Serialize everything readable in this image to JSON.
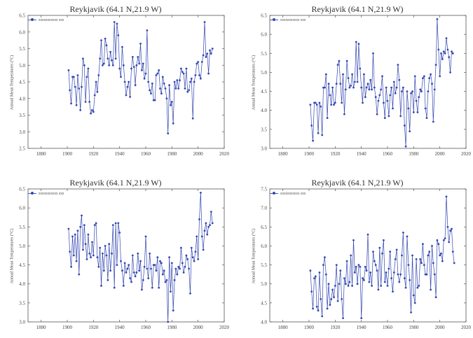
{
  "figure": {
    "background": "#ffffff",
    "series_color": "#3347b0",
    "axis_color": "#555555"
  },
  "chart_data": [
    {
      "type": "line",
      "title": "Reykjavik (64.1 N,21.9 W)",
      "legend": "xxxxxxxxxxx xxx",
      "ylabel": "Annual Mean Temperatures (°C)",
      "xlabel": "",
      "xlim": [
        1870,
        2020
      ],
      "ylim": [
        2.5,
        6.5
      ],
      "xticks": [
        "1880",
        "1900",
        "1920",
        "1940",
        "1960",
        "1980",
        "2000",
        "2020"
      ],
      "yticks": [
        "2.5",
        "3.0",
        "3.5",
        "4.0",
        "4.5",
        "5.0",
        "5.5",
        "6.0",
        "6.5"
      ],
      "x": [
        1901,
        1902,
        1903,
        1904,
        1905,
        1906,
        1907,
        1908,
        1909,
        1910,
        1911,
        1912,
        1913,
        1914,
        1915,
        1916,
        1917,
        1918,
        1919,
        1920,
        1921,
        1922,
        1923,
        1924,
        1925,
        1926,
        1927,
        1928,
        1929,
        1930,
        1931,
        1932,
        1933,
        1934,
        1935,
        1936,
        1937,
        1938,
        1939,
        1940,
        1941,
        1942,
        1943,
        1944,
        1945,
        1946,
        1947,
        1948,
        1949,
        1950,
        1951,
        1952,
        1953,
        1954,
        1955,
        1956,
        1957,
        1958,
        1959,
        1960,
        1961,
        1962,
        1963,
        1964,
        1965,
        1966,
        1967,
        1968,
        1969,
        1970,
        1971,
        1972,
        1973,
        1974,
        1975,
        1976,
        1977,
        1978,
        1979,
        1980,
        1981,
        1982,
        1983,
        1984,
        1985,
        1986,
        1987,
        1988,
        1989,
        1990,
        1991,
        1992,
        1993,
        1994,
        1995,
        1996,
        1997,
        1998,
        1999,
        2000,
        2001,
        2002,
        2003,
        2004,
        2005,
        2006,
        2007,
        2008,
        2009,
        2010,
        2011
      ],
      "values": [
        4.85,
        4.25,
        3.85,
        4.65,
        4.65,
        4.35,
        3.8,
        4.7,
        4.3,
        3.65,
        4.35,
        5.2,
        5.0,
        3.9,
        4.65,
        4.9,
        3.9,
        3.55,
        3.65,
        3.6,
        4.1,
        4.5,
        4.2,
        4.7,
        5.2,
        5.75,
        5.0,
        5.05,
        5.8,
        5.6,
        5.2,
        5.0,
        5.4,
        5.15,
        5.0,
        6.3,
        5.2,
        6.25,
        5.9,
        4.9,
        4.65,
        5.55,
        5.0,
        4.5,
        4.1,
        4.35,
        4.5,
        4.05,
        4.9,
        5.25,
        4.95,
        4.4,
        5.0,
        5.25,
        5.05,
        5.65,
        4.85,
        5.05,
        4.6,
        4.75,
        6.05,
        4.5,
        4.25,
        4.15,
        4.45,
        3.95,
        3.95,
        4.7,
        4.75,
        4.85,
        4.3,
        4.15,
        4.65,
        4.45,
        4.3,
        4.0,
        2.95,
        4.4,
        3.8,
        3.9,
        3.25,
        4.5,
        4.3,
        4.55,
        4.3,
        4.55,
        4.9,
        4.8,
        4.75,
        4.3,
        4.9,
        4.2,
        4.25,
        4.5,
        4.6,
        3.4,
        4.5,
        4.7,
        5.05,
        5.1,
        4.7,
        4.6,
        5.1,
        5.3,
        6.3,
        5.25,
        5.35,
        4.75,
        5.45,
        5.35,
        5.5
      ]
    },
    {
      "type": "line",
      "title": "Reykjavik (64.1 N,21.9 W)",
      "legend": "xxxxxxxxxxx xxx",
      "ylabel": "Annual Mean Temperatures (°C)",
      "xlabel": "",
      "xlim": [
        1870,
        2020
      ],
      "ylim": [
        3.0,
        6.5
      ],
      "xticks": [
        "1880",
        "1900",
        "1920",
        "1940",
        "1960",
        "1980",
        "2000",
        "2020"
      ],
      "yticks": [
        "3.0",
        "3.5",
        "4.0",
        "4.5",
        "5.0",
        "5.5",
        "6.0",
        "6.5"
      ],
      "x": [
        1901,
        1902,
        1903,
        1904,
        1905,
        1906,
        1907,
        1908,
        1909,
        1910,
        1911,
        1912,
        1913,
        1914,
        1915,
        1916,
        1917,
        1918,
        1919,
        1920,
        1921,
        1922,
        1923,
        1924,
        1925,
        1926,
        1927,
        1928,
        1929,
        1930,
        1931,
        1932,
        1933,
        1934,
        1935,
        1936,
        1937,
        1938,
        1939,
        1940,
        1941,
        1942,
        1943,
        1944,
        1945,
        1946,
        1947,
        1948,
        1949,
        1950,
        1951,
        1952,
        1953,
        1954,
        1955,
        1956,
        1957,
        1958,
        1959,
        1960,
        1961,
        1962,
        1963,
        1964,
        1965,
        1966,
        1967,
        1968,
        1969,
        1970,
        1971,
        1972,
        1973,
        1974,
        1975,
        1976,
        1977,
        1978,
        1979,
        1980,
        1981,
        1982,
        1983,
        1984,
        1985,
        1986,
        1987,
        1988,
        1989,
        1990,
        1991,
        1992,
        1993,
        1994,
        1995,
        1996,
        1997,
        1998,
        1999,
        2000,
        2001,
        2002,
        2003,
        2004,
        2005,
        2006,
        2007,
        2008,
        2009,
        2010
      ],
      "values": [
        4.15,
        3.6,
        3.2,
        4.2,
        4.2,
        4.15,
        3.4,
        4.2,
        4.1,
        3.35,
        4.6,
        4.6,
        4.95,
        3.8,
        4.7,
        4.4,
        4.15,
        4.6,
        4.15,
        4.2,
        4.7,
        5.2,
        5.3,
        4.7,
        4.2,
        4.95,
        3.9,
        4.55,
        5.3,
        4.85,
        4.6,
        4.65,
        4.95,
        4.6,
        4.75,
        5.8,
        4.75,
        5.75,
        5.1,
        4.6,
        4.2,
        4.95,
        4.35,
        4.6,
        4.7,
        4.55,
        4.8,
        4.55,
        5.5,
        4.6,
        4.35,
        3.9,
        4.25,
        4.4,
        4.55,
        4.9,
        4.2,
        3.8,
        4.6,
        4.25,
        3.85,
        4.4,
        4.6,
        4.05,
        4.75,
        4.45,
        4.6,
        5.2,
        4.8,
        3.85,
        4.5,
        4.6,
        3.6,
        3.05,
        4.5,
        4.05,
        3.45,
        4.45,
        4.5,
        3.95,
        4.9,
        4.25,
        3.95,
        4.35,
        4.55,
        4.5,
        4.85,
        4.9,
        4.05,
        3.8,
        4.5,
        4.85,
        4.95,
        4.7,
        3.7,
        4.55,
        5.2,
        6.4,
        5.6,
        4.9,
        5.5,
        5.35,
        5.55,
        5.5,
        5.9,
        5.6,
        5.4,
        5.0,
        5.55,
        5.5
      ]
    },
    {
      "type": "line",
      "title": "Reykjavik (64.1 N,21.9 W)",
      "legend": "xxxxxxxxxxx xxx",
      "ylabel": "Annual Mean Temperatures (°C)",
      "xlabel": "",
      "xlim": [
        1870,
        2020
      ],
      "ylim": [
        3.0,
        6.5
      ],
      "xticks": [
        "1880",
        "1900",
        "1920",
        "1940",
        "1960",
        "1980",
        "2000",
        "2020"
      ],
      "yticks": [
        "3.0",
        "3.5",
        "4.0",
        "4.5",
        "5.0",
        "5.5",
        "6.0",
        "6.5"
      ],
      "x": [
        1901,
        1902,
        1903,
        1904,
        1905,
        1906,
        1907,
        1908,
        1909,
        1910,
        1911,
        1912,
        1913,
        1914,
        1915,
        1916,
        1917,
        1918,
        1919,
        1920,
        1921,
        1922,
        1923,
        1924,
        1925,
        1926,
        1927,
        1928,
        1929,
        1930,
        1931,
        1932,
        1933,
        1934,
        1935,
        1936,
        1937,
        1938,
        1939,
        1940,
        1941,
        1942,
        1943,
        1944,
        1945,
        1946,
        1947,
        1948,
        1949,
        1950,
        1951,
        1952,
        1953,
        1954,
        1955,
        1956,
        1957,
        1958,
        1959,
        1960,
        1961,
        1962,
        1963,
        1964,
        1965,
        1966,
        1967,
        1968,
        1969,
        1970,
        1971,
        1972,
        1973,
        1974,
        1975,
        1976,
        1977,
        1978,
        1979,
        1980,
        1981,
        1982,
        1983,
        1984,
        1985,
        1986,
        1987,
        1988,
        1989,
        1990,
        1991,
        1992,
        1993,
        1994,
        1995,
        1996,
        1997,
        1998,
        1999,
        2000,
        2001,
        2002,
        2003,
        2004,
        2005,
        2006,
        2007,
        2008,
        2009,
        2010,
        2011
      ],
      "values": [
        5.45,
        4.85,
        4.45,
        5.25,
        4.75,
        5.3,
        4.6,
        5.4,
        4.25,
        5.5,
        5.8,
        4.9,
        5.55,
        5.05,
        4.65,
        5.3,
        4.8,
        4.7,
        5.1,
        4.75,
        5.55,
        5.6,
        4.7,
        4.45,
        4.95,
        3.95,
        4.8,
        4.35,
        5.0,
        4.75,
        4.1,
        5.05,
        4.35,
        4.8,
        5.55,
        3.9,
        5.6,
        4.5,
        5.6,
        5.35,
        4.6,
        4.35,
        3.95,
        4.55,
        4.3,
        4.4,
        4.5,
        4.15,
        4.05,
        4.75,
        4.3,
        4.2,
        4.3,
        4.8,
        4.35,
        4.6,
        3.85,
        4.1,
        4.45,
        5.25,
        4.4,
        4.15,
        4.8,
        4.4,
        3.9,
        4.5,
        4.5,
        4.35,
        4.7,
        3.9,
        4.6,
        4.55,
        4.25,
        4.35,
        4.05,
        4.1,
        3.0,
        4.7,
        3.8,
        4.55,
        3.3,
        4.1,
        4.4,
        4.25,
        4.45,
        4.4,
        4.95,
        4.55,
        4.3,
        4.45,
        4.75,
        4.65,
        4.4,
        3.75,
        4.95,
        4.7,
        4.6,
        4.85,
        5.25,
        4.65,
        5.7,
        6.4,
        5.25,
        4.9,
        5.4,
        5.6,
        5.3,
        5.5,
        5.55,
        5.9,
        5.6
      ]
    },
    {
      "type": "line",
      "title": "Reykjavik (64.1 N,21.9 W)",
      "legend": "xxxxxxxxxxx xxx",
      "ylabel": "Annual Mean Temperatures (°C)",
      "xlabel": "",
      "xlim": [
        1870,
        2020
      ],
      "ylim": [
        4.0,
        7.5
      ],
      "xticks": [
        "1880",
        "1900",
        "1920",
        "1940",
        "1960",
        "1980",
        "2000",
        "2020"
      ],
      "yticks": [
        "4.0",
        "4.5",
        "5.0",
        "5.5",
        "6.0",
        "6.5",
        "7.0",
        "7.5"
      ],
      "x": [
        1901,
        1902,
        1903,
        1904,
        1905,
        1906,
        1907,
        1908,
        1909,
        1910,
        1911,
        1912,
        1913,
        1914,
        1915,
        1916,
        1917,
        1918,
        1919,
        1920,
        1921,
        1922,
        1923,
        1924,
        1925,
        1926,
        1927,
        1928,
        1929,
        1930,
        1931,
        1932,
        1933,
        1934,
        1935,
        1936,
        1937,
        1938,
        1939,
        1940,
        1941,
        1942,
        1943,
        1944,
        1945,
        1946,
        1947,
        1948,
        1949,
        1950,
        1951,
        1952,
        1953,
        1954,
        1955,
        1956,
        1957,
        1958,
        1959,
        1960,
        1961,
        1962,
        1963,
        1964,
        1965,
        1966,
        1967,
        1968,
        1969,
        1970,
        1971,
        1972,
        1973,
        1974,
        1975,
        1976,
        1977,
        1978,
        1979,
        1980,
        1981,
        1982,
        1983,
        1984,
        1985,
        1986,
        1987,
        1988,
        1989,
        1990,
        1991,
        1992,
        1993,
        1994,
        1995,
        1996,
        1997,
        1998,
        1999,
        2000,
        2001,
        2002,
        2003,
        2004,
        2005,
        2006,
        2007,
        2008,
        2009,
        2010,
        2011
      ],
      "values": [
        5.35,
        4.8,
        4.35,
        5.15,
        5.2,
        4.4,
        4.3,
        5.3,
        4.6,
        4.15,
        5.5,
        5.7,
        5.25,
        4.35,
        5.0,
        4.45,
        4.6,
        4.85,
        4.65,
        4.95,
        5.5,
        4.55,
        5.0,
        5.35,
        4.6,
        4.1,
        5.15,
        5.0,
        5.6,
        4.95,
        5.05,
        5.75,
        4.95,
        6.15,
        5.3,
        5.45,
        5.0,
        5.5,
        5.45,
        4.1,
        5.15,
        5.1,
        5.45,
        5.35,
        6.3,
        5.05,
        5.3,
        4.95,
        5.85,
        5.6,
        5.5,
        5.35,
        4.85,
        5.95,
        4.95,
        5.8,
        6.15,
        5.05,
        5.3,
        4.95,
        5.4,
        5.85,
        5.15,
        4.8,
        5.3,
        5.65,
        5.9,
        5.25,
        5.05,
        5.25,
        5.75,
        6.35,
        5.15,
        4.9,
        6.25,
        5.5,
        5.1,
        4.25,
        5.75,
        4.7,
        4.5,
        5.65,
        4.9,
        4.95,
        5.65,
        5.55,
        6.05,
        5.5,
        5.25,
        5.25,
        5.75,
        5.85,
        4.85,
        6.0,
        5.55,
        5.25,
        4.65,
        6.15,
        6.05,
        5.75,
        5.8,
        5.6,
        6.15,
        6.2,
        7.3,
        6.5,
        6.1,
        6.4,
        6.45,
        5.85,
        5.55
      ]
    }
  ]
}
